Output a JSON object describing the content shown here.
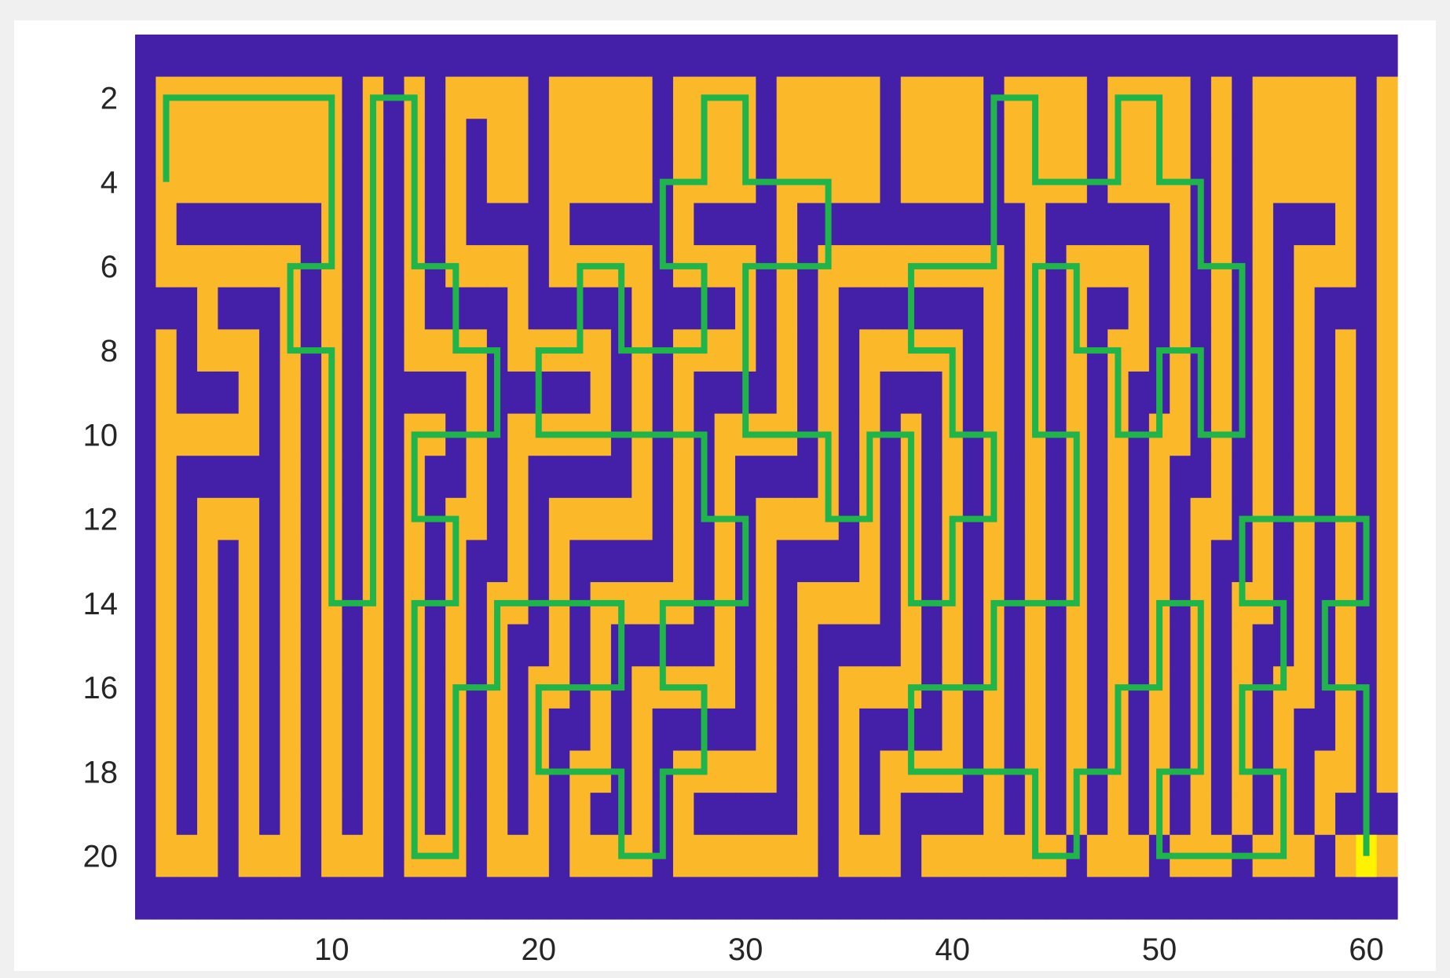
{
  "chart_data": {
    "type": "heatmap",
    "title": "",
    "xlabel": "",
    "ylabel": "",
    "xlim": [
      0.5,
      61.5
    ],
    "ylim": [
      0.5,
      21.5
    ],
    "y_direction": "reverse",
    "xticks": [
      10,
      20,
      30,
      40,
      50,
      60
    ],
    "yticks": [
      2,
      4,
      6,
      8,
      10,
      12,
      14,
      16,
      18,
      20
    ],
    "grid": false,
    "legend": "none",
    "colormap": {
      "wall": "#4420a8",
      "open": "#fbb829",
      "goal": "#fff200"
    },
    "path_color": "#1fb54a",
    "maze_rows": [
      "#############################################################",
      "#.........#.#.#....#.....#....#.....#....#....#....#.#.....#.",
      "#.........#.#.#.#..#.....#....#.....#....#....#....#.#.....#.",
      "#.........#.#.#.#..#.....#....#.....#....#....#....#.#.....#.",
      "#.#######.#.#.#.####.#####.####.###########.######.#.#.###.#.",
      "#.......#.#.#.#....#.....#....#.#.........#.#....#.#.#.#...#.",
      "###.###.#.#.#.####.#####.####.#.#.#######.#.#.##.#.#.#.#.###.",
      "#.#...#.#.#.#....#.....#.#....#.#.#.....#.#.#.#..#.#.#.#.#.#.",
      "#.###.#.#.#.####.#####.#.#.####.#.#.###.#.#.#.#.##.#.#.#.#.#.",
      "#.....#.#.#.#..#.#.....#.#.#....#.#.#.#.#.#.#.#.#..#.#.#.#.#.",
      "#.#####.#.#.#.##.#.#####.#.#.####.#.#.#.#.#.#.#.#.##.#.#.#.#.",
      "#.#...#.#.#.#.#..#.#.....#.#.#....#.#.#.#.#.#.#.#.#..#.#.#.#.",
      "#.#.#.#.#.#.#.#.##.#.#####.#.#.####.#.#.#.#.#.#.#.#.##.#.#.#.",
      "#.#.#.#.#.#.#.#.#..#.#.....#.#.#....#.#.#.#.#.#.#.#.#..#.#.#.",
      "#.#.#.#.#.#.#.#.#.##.#.#####.#.#.####.#.#.#.#.#.#.#.#.##.#.#.",
      "#.#.#.#.#.#.#.#.#.#..#.#.....#.#.#....#.#.#.#.#.#.#.#.#..#.#.",
      "#.#.#.#.#.#.#.#.#.#.##.#.#####.#.#.####.#.#.#.#.#.#.#.#.##.#.",
      "#.#.#.#.#.#.#.#.#.#.#..#.#.....#.#.#....#.#.#.#.#.#.#.#.#..#.",
      "#.#.#.#.#.#.#.#.#.#.#.##.#.#####.#.#.####.#.#.#.#.#.#.#.#.###",
      "#...#...#...#...#...#....#.......#...#.......#...#...#...#...",
      "#############################################################"
    ],
    "solution_path": [
      [
        2,
        4
      ],
      [
        2,
        2
      ],
      [
        10,
        2
      ],
      [
        10,
        6
      ],
      [
        8,
        6
      ],
      [
        8,
        8
      ],
      [
        10,
        8
      ],
      [
        10,
        14
      ],
      [
        12,
        14
      ],
      [
        12,
        2
      ],
      [
        14,
        2
      ],
      [
        14,
        6
      ],
      [
        16,
        6
      ],
      [
        16,
        8
      ],
      [
        18,
        8
      ],
      [
        18,
        10
      ],
      [
        14,
        10
      ],
      [
        14,
        12
      ],
      [
        16,
        12
      ],
      [
        16,
        14
      ],
      [
        14,
        14
      ],
      [
        14,
        20
      ],
      [
        16,
        20
      ],
      [
        16,
        16
      ],
      [
        18,
        16
      ],
      [
        18,
        14
      ],
      [
        24,
        14
      ],
      [
        24,
        16
      ],
      [
        20,
        16
      ],
      [
        20,
        18
      ],
      [
        24,
        18
      ],
      [
        24,
        20
      ],
      [
        26,
        20
      ],
      [
        26,
        18
      ],
      [
        28,
        18
      ],
      [
        28,
        16
      ],
      [
        26,
        16
      ],
      [
        26,
        14
      ],
      [
        30,
        14
      ],
      [
        30,
        12
      ],
      [
        28,
        12
      ],
      [
        28,
        10
      ],
      [
        20,
        10
      ],
      [
        20,
        8
      ],
      [
        22,
        8
      ],
      [
        22,
        6
      ],
      [
        24,
        6
      ],
      [
        24,
        8
      ],
      [
        28,
        8
      ],
      [
        28,
        6
      ],
      [
        26,
        6
      ],
      [
        26,
        4
      ],
      [
        28,
        4
      ],
      [
        28,
        2
      ],
      [
        30,
        2
      ],
      [
        30,
        4
      ],
      [
        34,
        4
      ],
      [
        34,
        6
      ],
      [
        30,
        6
      ],
      [
        30,
        10
      ],
      [
        34,
        10
      ],
      [
        34,
        12
      ],
      [
        36,
        12
      ],
      [
        36,
        10
      ],
      [
        38,
        10
      ],
      [
        38,
        14
      ],
      [
        40,
        14
      ],
      [
        40,
        12
      ],
      [
        42,
        12
      ],
      [
        42,
        10
      ],
      [
        40,
        10
      ],
      [
        40,
        8
      ],
      [
        38,
        8
      ],
      [
        38,
        6
      ],
      [
        42,
        6
      ],
      [
        42,
        2
      ],
      [
        44,
        2
      ],
      [
        44,
        4
      ],
      [
        48,
        4
      ],
      [
        48,
        2
      ],
      [
        50,
        2
      ],
      [
        50,
        4
      ],
      [
        52,
        4
      ],
      [
        52,
        6
      ],
      [
        54,
        6
      ],
      [
        54,
        10
      ],
      [
        52,
        10
      ],
      [
        52,
        8
      ],
      [
        50,
        8
      ],
      [
        50,
        10
      ],
      [
        48,
        10
      ],
      [
        48,
        8
      ],
      [
        46,
        8
      ],
      [
        46,
        6
      ],
      [
        44,
        6
      ],
      [
        44,
        10
      ],
      [
        46,
        10
      ],
      [
        46,
        14
      ],
      [
        42,
        14
      ],
      [
        42,
        16
      ],
      [
        38,
        16
      ],
      [
        38,
        18
      ],
      [
        44,
        18
      ],
      [
        44,
        20
      ],
      [
        46,
        20
      ],
      [
        46,
        18
      ],
      [
        48,
        18
      ],
      [
        48,
        16
      ],
      [
        50,
        16
      ],
      [
        50,
        14
      ],
      [
        52,
        14
      ],
      [
        52,
        18
      ],
      [
        50,
        18
      ],
      [
        50,
        20
      ],
      [
        56,
        20
      ],
      [
        56,
        18
      ],
      [
        54,
        18
      ],
      [
        54,
        16
      ],
      [
        56,
        16
      ],
      [
        56,
        14
      ],
      [
        54,
        14
      ],
      [
        54,
        12
      ],
      [
        60,
        12
      ],
      [
        60,
        14
      ],
      [
        58,
        14
      ],
      [
        58,
        16
      ],
      [
        60,
        16
      ],
      [
        60,
        20
      ]
    ],
    "goal_cell": [
      60,
      20
    ]
  }
}
